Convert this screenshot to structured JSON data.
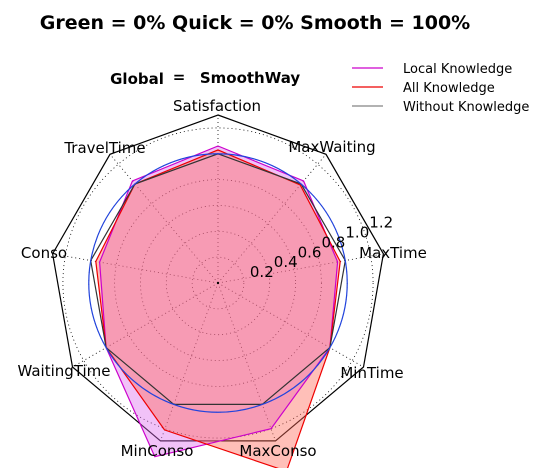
{
  "chart_data": {
    "type": "radar",
    "title": "Green = 0% Quick = 0% Smooth = 100%",
    "subtitle_label": "Global",
    "subtitle_eq": "=",
    "subtitle_value": "SmoothWay",
    "axes": [
      "Satisfaction",
      "MaxWaiting",
      "MaxTime",
      "MinTime",
      "MaxConso",
      "MinConso",
      "WaitingTime",
      "Conso",
      "TravelTime"
    ],
    "rticks": [
      0.2,
      0.4,
      0.6,
      0.8,
      1.0,
      1.2
    ],
    "rtick_labels": [
      "0.2",
      "0.4",
      "0.6",
      "0.8",
      "1.0",
      "1.2"
    ],
    "rmax": 1.3,
    "reference_circle": 1.0,
    "series": [
      {
        "name": "Local Knowledge",
        "color": "#cc00cc",
        "fill": "#dd66ee",
        "fill_opacity": 0.4,
        "values": [
          1.06,
          1.03,
          0.94,
          1.0,
          1.2,
          1.43,
          1.0,
          0.93,
          1.03
        ]
      },
      {
        "name": "All Knowledge",
        "color": "#ee0000",
        "fill": "#ff6655",
        "fill_opacity": 0.42,
        "values": [
          1.03,
          0.99,
          0.96,
          1.0,
          1.55,
          1.21,
          1.0,
          0.96,
          1.0
        ]
      },
      {
        "name": "Without Knowledge",
        "color": "#333333",
        "fill": "none",
        "fill_opacity": 0,
        "values": [
          1.0,
          1.0,
          1.0,
          1.0,
          1.0,
          1.0,
          1.0,
          1.0,
          1.0
        ]
      }
    ],
    "legend_position": "top-right",
    "grid": true
  }
}
